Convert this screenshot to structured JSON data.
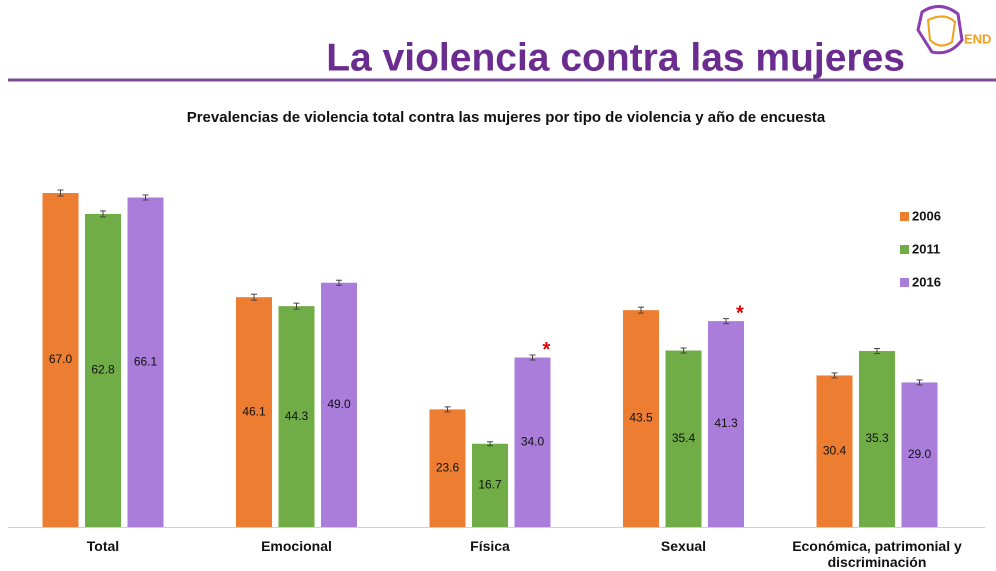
{
  "logo": {
    "text": "END"
  },
  "chart_data": {
    "type": "bar",
    "title": "La violencia contra las mujeres",
    "subtitle": "Prevalencias de violencia total contra las mujeres por tipo de violencia y año de encuesta",
    "categories": [
      "Total",
      "Emocional",
      "Física",
      "Sexual",
      "Económica, patrimonial y discriminación"
    ],
    "legend": "right",
    "series": [
      {
        "name": "2006",
        "color": "#ed7d31",
        "values": [
          67.0,
          46.1,
          23.6,
          43.5,
          30.4
        ],
        "value_labels": [
          "67.0",
          "46.1",
          "23.6",
          "43.5",
          "30.4"
        ],
        "errors": [
          0.6,
          0.6,
          0.5,
          0.6,
          0.5
        ]
      },
      {
        "name": "2011",
        "color": "#70ad47",
        "values": [
          62.8,
          44.3,
          16.7,
          35.4,
          35.3
        ],
        "value_labels": [
          "62.8",
          "44.3",
          "16.7",
          "35.4",
          "35.3"
        ],
        "errors": [
          0.6,
          0.6,
          0.4,
          0.5,
          0.5
        ]
      },
      {
        "name": "2016",
        "color": "#ab7ddb",
        "values": [
          66.1,
          49.0,
          34.0,
          41.3,
          29.0
        ],
        "value_labels": [
          "66.1",
          "49.0",
          "34.0",
          "41.3",
          "29.0"
        ],
        "errors": [
          0.5,
          0.5,
          0.5,
          0.5,
          0.5
        ],
        "markers": [
          null,
          null,
          "*",
          "*",
          null
        ]
      }
    ]
  }
}
